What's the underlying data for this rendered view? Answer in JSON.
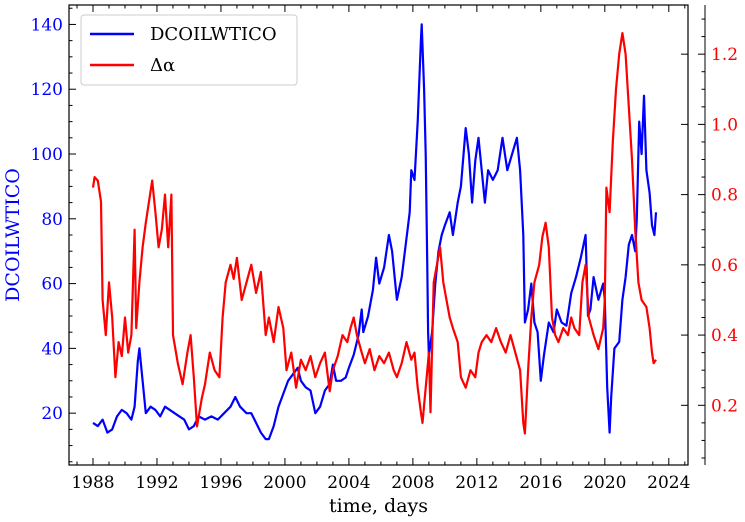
{
  "chart_data": {
    "type": "line",
    "xlabel": "time, days",
    "ylabel_left": "DCOILWTICO",
    "ylabel_right": "",
    "xlim": [
      1986.5,
      2025.2
    ],
    "ylim_left": [
      4,
      146
    ],
    "ylim_right": [
      0.03,
      1.34
    ],
    "x_ticks": [
      1988,
      1992,
      1996,
      2000,
      2004,
      2008,
      2012,
      2016,
      2020,
      2024
    ],
    "y_ticks_left": [
      20,
      40,
      60,
      80,
      100,
      120,
      140
    ],
    "y_ticks_right": [
      0.2,
      0.4,
      0.6,
      0.8,
      1.0,
      1.2
    ],
    "legend_position": "top-left",
    "colors": {
      "left_axis": "#0000ff",
      "right_axis": "#ff0000"
    },
    "series": [
      {
        "name": "DCOILWTICO",
        "axis": "left",
        "color": "#0000ff",
        "points": [
          [
            1988.0,
            17
          ],
          [
            1988.3,
            16
          ],
          [
            1988.6,
            18
          ],
          [
            1988.9,
            14
          ],
          [
            1989.2,
            15
          ],
          [
            1989.5,
            19
          ],
          [
            1989.8,
            21
          ],
          [
            1990.1,
            20
          ],
          [
            1990.4,
            18
          ],
          [
            1990.6,
            22
          ],
          [
            1990.8,
            36
          ],
          [
            1990.9,
            40
          ],
          [
            1991.1,
            30
          ],
          [
            1991.3,
            20
          ],
          [
            1991.6,
            22
          ],
          [
            1991.9,
            21
          ],
          [
            1992.2,
            19
          ],
          [
            1992.5,
            22
          ],
          [
            1992.8,
            21
          ],
          [
            1993.1,
            20
          ],
          [
            1993.4,
            19
          ],
          [
            1993.7,
            18
          ],
          [
            1994.0,
            15
          ],
          [
            1994.3,
            16
          ],
          [
            1994.6,
            19
          ],
          [
            1995.0,
            18
          ],
          [
            1995.4,
            19
          ],
          [
            1995.8,
            18
          ],
          [
            1996.2,
            20
          ],
          [
            1996.6,
            22
          ],
          [
            1996.9,
            25
          ],
          [
            1997.2,
            22
          ],
          [
            1997.6,
            20
          ],
          [
            1997.9,
            20
          ],
          [
            1998.2,
            17
          ],
          [
            1998.5,
            14
          ],
          [
            1998.8,
            12
          ],
          [
            1999.0,
            12
          ],
          [
            1999.3,
            16
          ],
          [
            1999.6,
            22
          ],
          [
            1999.9,
            26
          ],
          [
            2000.2,
            30
          ],
          [
            2000.5,
            32
          ],
          [
            2000.8,
            34
          ],
          [
            2001.0,
            30
          ],
          [
            2001.3,
            28
          ],
          [
            2001.6,
            27
          ],
          [
            2001.9,
            20
          ],
          [
            2002.2,
            22
          ],
          [
            2002.5,
            27
          ],
          [
            2002.8,
            29
          ],
          [
            2003.0,
            35
          ],
          [
            2003.2,
            30
          ],
          [
            2003.5,
            30
          ],
          [
            2003.8,
            31
          ],
          [
            2004.0,
            34
          ],
          [
            2004.3,
            38
          ],
          [
            2004.6,
            44
          ],
          [
            2004.8,
            52
          ],
          [
            2004.9,
            45
          ],
          [
            2005.2,
            50
          ],
          [
            2005.5,
            58
          ],
          [
            2005.7,
            68
          ],
          [
            2005.9,
            60
          ],
          [
            2006.2,
            65
          ],
          [
            2006.5,
            75
          ],
          [
            2006.7,
            70
          ],
          [
            2006.9,
            60
          ],
          [
            2007.0,
            55
          ],
          [
            2007.3,
            62
          ],
          [
            2007.5,
            70
          ],
          [
            2007.8,
            82
          ],
          [
            2007.9,
            95
          ],
          [
            2008.1,
            92
          ],
          [
            2008.3,
            110
          ],
          [
            2008.5,
            135
          ],
          [
            2008.55,
            140
          ],
          [
            2008.7,
            120
          ],
          [
            2008.8,
            100
          ],
          [
            2008.9,
            65
          ],
          [
            2008.95,
            45
          ],
          [
            2009.0,
            38
          ],
          [
            2009.2,
            45
          ],
          [
            2009.4,
            60
          ],
          [
            2009.6,
            70
          ],
          [
            2009.8,
            75
          ],
          [
            2010.0,
            78
          ],
          [
            2010.3,
            82
          ],
          [
            2010.5,
            75
          ],
          [
            2010.8,
            85
          ],
          [
            2011.0,
            90
          ],
          [
            2011.3,
            108
          ],
          [
            2011.5,
            100
          ],
          [
            2011.7,
            85
          ],
          [
            2011.9,
            98
          ],
          [
            2012.1,
            105
          ],
          [
            2012.3,
            95
          ],
          [
            2012.5,
            85
          ],
          [
            2012.7,
            95
          ],
          [
            2013.0,
            92
          ],
          [
            2013.3,
            95
          ],
          [
            2013.6,
            105
          ],
          [
            2013.9,
            95
          ],
          [
            2014.2,
            100
          ],
          [
            2014.5,
            105
          ],
          [
            2014.7,
            95
          ],
          [
            2014.9,
            75
          ],
          [
            2015.0,
            48
          ],
          [
            2015.2,
            52
          ],
          [
            2015.4,
            60
          ],
          [
            2015.6,
            48
          ],
          [
            2015.8,
            45
          ],
          [
            2016.0,
            30
          ],
          [
            2016.2,
            38
          ],
          [
            2016.5,
            48
          ],
          [
            2016.8,
            45
          ],
          [
            2017.0,
            52
          ],
          [
            2017.3,
            48
          ],
          [
            2017.6,
            47
          ],
          [
            2017.9,
            57
          ],
          [
            2018.2,
            62
          ],
          [
            2018.5,
            68
          ],
          [
            2018.8,
            75
          ],
          [
            2018.95,
            50
          ],
          [
            2019.1,
            52
          ],
          [
            2019.3,
            62
          ],
          [
            2019.6,
            55
          ],
          [
            2019.9,
            60
          ],
          [
            2020.0,
            55
          ],
          [
            2020.15,
            28
          ],
          [
            2020.3,
            14
          ],
          [
            2020.4,
            25
          ],
          [
            2020.6,
            40
          ],
          [
            2020.9,
            42
          ],
          [
            2021.1,
            55
          ],
          [
            2021.3,
            62
          ],
          [
            2021.5,
            72
          ],
          [
            2021.7,
            75
          ],
          [
            2021.9,
            70
          ],
          [
            2022.0,
            80
          ],
          [
            2022.15,
            110
          ],
          [
            2022.3,
            100
          ],
          [
            2022.45,
            118
          ],
          [
            2022.6,
            95
          ],
          [
            2022.8,
            88
          ],
          [
            2022.95,
            78
          ],
          [
            2023.1,
            75
          ],
          [
            2023.2,
            82
          ]
        ]
      },
      {
        "name": "Δα",
        "axis": "right",
        "color": "#ff0000",
        "points": [
          [
            1988.0,
            0.82
          ],
          [
            1988.1,
            0.85
          ],
          [
            1988.3,
            0.84
          ],
          [
            1988.5,
            0.78
          ],
          [
            1988.6,
            0.5
          ],
          [
            1988.8,
            0.4
          ],
          [
            1989.0,
            0.55
          ],
          [
            1989.2,
            0.45
          ],
          [
            1989.4,
            0.28
          ],
          [
            1989.6,
            0.38
          ],
          [
            1989.8,
            0.34
          ],
          [
            1990.0,
            0.45
          ],
          [
            1990.2,
            0.35
          ],
          [
            1990.4,
            0.4
          ],
          [
            1990.6,
            0.7
          ],
          [
            1990.7,
            0.42
          ],
          [
            1990.9,
            0.55
          ],
          [
            1991.1,
            0.65
          ],
          [
            1991.3,
            0.72
          ],
          [
            1991.5,
            0.78
          ],
          [
            1991.7,
            0.84
          ],
          [
            1991.9,
            0.75
          ],
          [
            1992.1,
            0.65
          ],
          [
            1992.3,
            0.7
          ],
          [
            1992.5,
            0.8
          ],
          [
            1992.7,
            0.65
          ],
          [
            1992.9,
            0.8
          ],
          [
            1993.0,
            0.4
          ],
          [
            1993.3,
            0.32
          ],
          [
            1993.6,
            0.26
          ],
          [
            1993.9,
            0.35
          ],
          [
            1994.1,
            0.4
          ],
          [
            1994.3,
            0.28
          ],
          [
            1994.5,
            0.14
          ],
          [
            1994.8,
            0.22
          ],
          [
            1995.0,
            0.26
          ],
          [
            1995.3,
            0.35
          ],
          [
            1995.6,
            0.3
          ],
          [
            1995.9,
            0.28
          ],
          [
            1996.1,
            0.45
          ],
          [
            1996.3,
            0.55
          ],
          [
            1996.6,
            0.6
          ],
          [
            1996.8,
            0.56
          ],
          [
            1997.0,
            0.62
          ],
          [
            1997.3,
            0.5
          ],
          [
            1997.6,
            0.55
          ],
          [
            1997.9,
            0.6
          ],
          [
            1998.2,
            0.52
          ],
          [
            1998.5,
            0.58
          ],
          [
            1998.8,
            0.4
          ],
          [
            1999.0,
            0.45
          ],
          [
            1999.3,
            0.38
          ],
          [
            1999.6,
            0.48
          ],
          [
            1999.9,
            0.42
          ],
          [
            2000.1,
            0.3
          ],
          [
            2000.4,
            0.35
          ],
          [
            2000.7,
            0.25
          ],
          [
            2001.0,
            0.33
          ],
          [
            2001.3,
            0.3
          ],
          [
            2001.6,
            0.34
          ],
          [
            2001.9,
            0.28
          ],
          [
            2002.2,
            0.32
          ],
          [
            2002.5,
            0.35
          ],
          [
            2002.8,
            0.24
          ],
          [
            2003.0,
            0.3
          ],
          [
            2003.3,
            0.34
          ],
          [
            2003.6,
            0.4
          ],
          [
            2003.9,
            0.38
          ],
          [
            2004.1,
            0.42
          ],
          [
            2004.3,
            0.45
          ],
          [
            2004.5,
            0.4
          ],
          [
            2004.8,
            0.35
          ],
          [
            2005.0,
            0.32
          ],
          [
            2005.3,
            0.36
          ],
          [
            2005.6,
            0.3
          ],
          [
            2005.9,
            0.34
          ],
          [
            2006.2,
            0.32
          ],
          [
            2006.5,
            0.35
          ],
          [
            2006.8,
            0.3
          ],
          [
            2007.0,
            0.28
          ],
          [
            2007.3,
            0.32
          ],
          [
            2007.6,
            0.38
          ],
          [
            2007.9,
            0.33
          ],
          [
            2008.1,
            0.35
          ],
          [
            2008.3,
            0.25
          ],
          [
            2008.5,
            0.18
          ],
          [
            2008.6,
            0.15
          ],
          [
            2008.8,
            0.25
          ],
          [
            2009.0,
            0.35
          ],
          [
            2009.1,
            0.18
          ],
          [
            2009.3,
            0.55
          ],
          [
            2009.5,
            0.6
          ],
          [
            2009.7,
            0.65
          ],
          [
            2009.9,
            0.55
          ],
          [
            2010.1,
            0.5
          ],
          [
            2010.3,
            0.45
          ],
          [
            2010.5,
            0.42
          ],
          [
            2010.8,
            0.38
          ],
          [
            2011.0,
            0.28
          ],
          [
            2011.3,
            0.25
          ],
          [
            2011.6,
            0.3
          ],
          [
            2011.9,
            0.28
          ],
          [
            2012.1,
            0.35
          ],
          [
            2012.3,
            0.38
          ],
          [
            2012.6,
            0.4
          ],
          [
            2012.9,
            0.38
          ],
          [
            2013.2,
            0.42
          ],
          [
            2013.5,
            0.38
          ],
          [
            2013.8,
            0.35
          ],
          [
            2014.1,
            0.4
          ],
          [
            2014.4,
            0.35
          ],
          [
            2014.7,
            0.3
          ],
          [
            2014.9,
            0.15
          ],
          [
            2015.0,
            0.12
          ],
          [
            2015.2,
            0.3
          ],
          [
            2015.4,
            0.45
          ],
          [
            2015.6,
            0.55
          ],
          [
            2015.9,
            0.6
          ],
          [
            2016.1,
            0.68
          ],
          [
            2016.3,
            0.72
          ],
          [
            2016.5,
            0.65
          ],
          [
            2016.7,
            0.45
          ],
          [
            2016.9,
            0.4
          ],
          [
            2017.1,
            0.38
          ],
          [
            2017.4,
            0.42
          ],
          [
            2017.7,
            0.4
          ],
          [
            2017.9,
            0.45
          ],
          [
            2018.1,
            0.42
          ],
          [
            2018.4,
            0.4
          ],
          [
            2018.6,
            0.55
          ],
          [
            2018.8,
            0.6
          ],
          [
            2019.0,
            0.45
          ],
          [
            2019.3,
            0.4
          ],
          [
            2019.6,
            0.36
          ],
          [
            2019.9,
            0.42
          ],
          [
            2020.0,
            0.5
          ],
          [
            2020.1,
            0.82
          ],
          [
            2020.3,
            0.75
          ],
          [
            2020.5,
            0.95
          ],
          [
            2020.7,
            1.1
          ],
          [
            2020.9,
            1.2
          ],
          [
            2021.1,
            1.26
          ],
          [
            2021.3,
            1.2
          ],
          [
            2021.5,
            1.05
          ],
          [
            2021.7,
            0.9
          ],
          [
            2021.9,
            0.7
          ],
          [
            2022.1,
            0.55
          ],
          [
            2022.3,
            0.5
          ],
          [
            2022.6,
            0.48
          ],
          [
            2022.8,
            0.42
          ],
          [
            2022.95,
            0.35
          ],
          [
            2023.05,
            0.32
          ],
          [
            2023.2,
            0.33
          ]
        ]
      }
    ]
  }
}
